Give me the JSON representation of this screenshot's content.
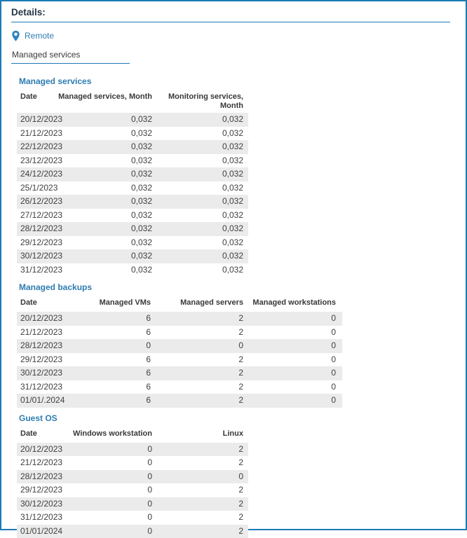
{
  "header": {
    "title": "Details:"
  },
  "location": {
    "icon": "location-pin-icon",
    "label": "Remote"
  },
  "filter": {
    "value": "Managed services"
  },
  "tables": [
    {
      "title": "Managed services",
      "columns": [
        "Date",
        "Managed services, Month",
        "Monitoring services, Month"
      ],
      "rows": [
        [
          "20/12/2023",
          "0,032",
          "0,032"
        ],
        [
          "21/12/2023",
          "0,032",
          "0,032"
        ],
        [
          "22/12/2023",
          "0,032",
          "0,032"
        ],
        [
          "23/12/2023",
          "0,032",
          "0,032"
        ],
        [
          "24/12/2023",
          "0,032",
          "0,032"
        ],
        [
          "25/1/2023",
          "0,032",
          "0,032"
        ],
        [
          "26/12/2023",
          "0,032",
          "0,032"
        ],
        [
          "27/12/2023",
          "0,032",
          "0,032"
        ],
        [
          "28/12/2023",
          "0,032",
          "0,032"
        ],
        [
          "29/12/2023",
          "0,032",
          "0,032"
        ],
        [
          "30/12/2023",
          "0,032",
          "0,032"
        ],
        [
          "31/12/2023",
          "0,032",
          "0,032"
        ]
      ]
    },
    {
      "title": "Managed backups",
      "columns": [
        "Date",
        "Managed VMs",
        "Managed servers",
        "Managed workstations"
      ],
      "rows": [
        [
          "20/12/2023",
          "6",
          "2",
          "0"
        ],
        [
          "21/12/2023",
          "6",
          "2",
          "0"
        ],
        [
          "28/12/2023",
          "0",
          "0",
          "0"
        ],
        [
          "29/12/2023",
          "6",
          "2",
          "0"
        ],
        [
          "30/12/2023",
          "6",
          "2",
          "0"
        ],
        [
          "31/12/2023",
          "6",
          "2",
          "0"
        ],
        [
          "01/01/.2024",
          "6",
          "2",
          "0"
        ]
      ]
    },
    {
      "title": "Guest OS",
      "columns": [
        "Date",
        "Windows workstation",
        "Linux"
      ],
      "rows": [
        [
          "20/12/2023",
          "0",
          "2"
        ],
        [
          "21/12/2023",
          "0",
          "2"
        ],
        [
          "28/12/2023",
          "0",
          "0"
        ],
        [
          "29/12/2023",
          "0",
          "2"
        ],
        [
          "30/12/2023",
          "0",
          "2"
        ],
        [
          "31/12/2023",
          "0",
          "2"
        ],
        [
          "01/01/2024",
          "0",
          "2"
        ]
      ]
    }
  ],
  "colors": {
    "accent_blue": "#1b7ab5",
    "link_blue": "#2e7cb0",
    "heading": "#253746",
    "stripe": "#ebebeb",
    "text": "#3f3f3f"
  }
}
